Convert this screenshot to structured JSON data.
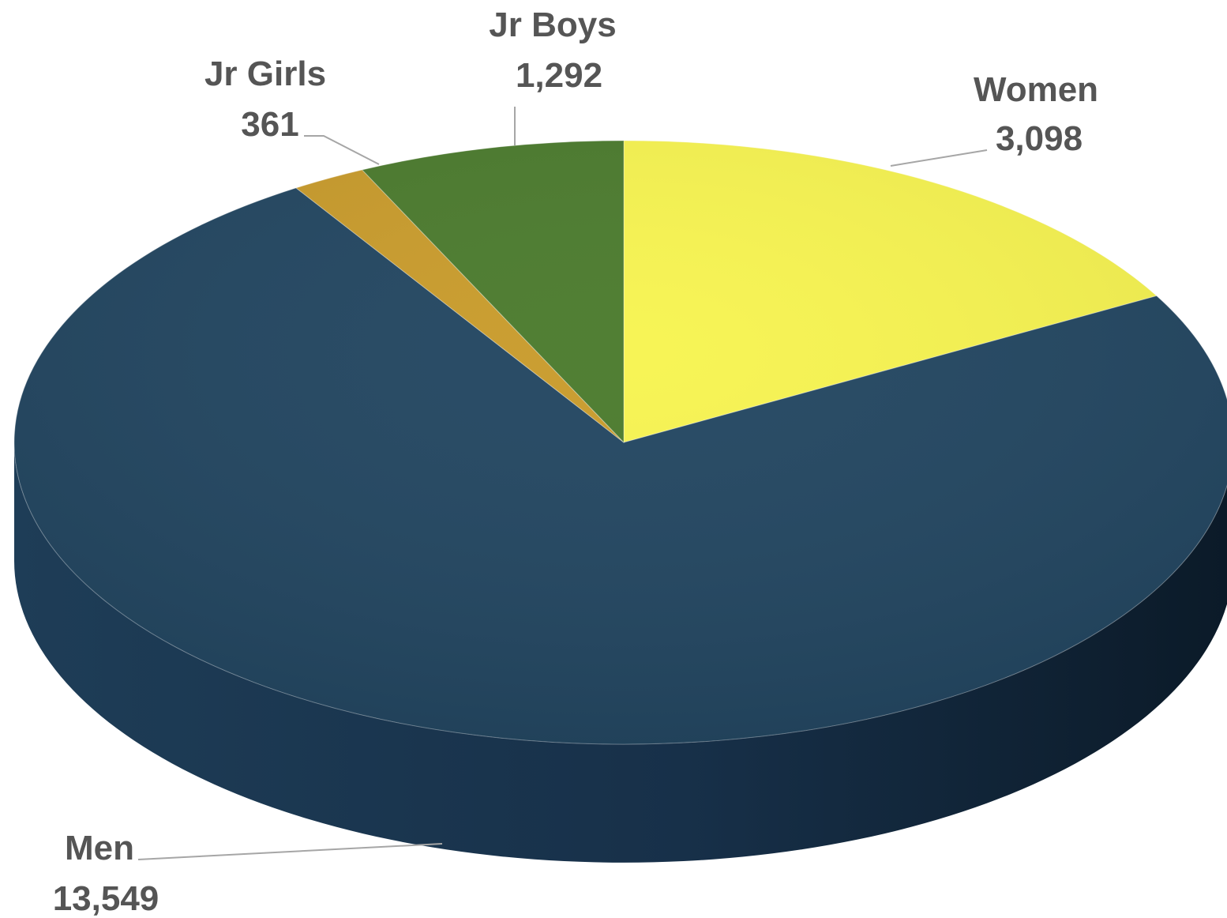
{
  "chart_data": {
    "type": "pie",
    "style": "3d",
    "categories": [
      "Women",
      "Men",
      "Jr Girls",
      "Jr Boys"
    ],
    "values": [
      3098,
      13549,
      361,
      1292
    ],
    "value_labels": [
      "3,098",
      "13,549",
      "361",
      "1,292"
    ],
    "colors": {
      "Women": "#f7f44f",
      "Men": "#214560",
      "Jr Girls": "#c99b2a",
      "Jr Boys": "#4a7a2c"
    },
    "side_colors": {
      "Men": "#16304a"
    },
    "label_color": "#555555",
    "leader_color": "#a6a6a6",
    "legend": "none",
    "title": ""
  }
}
